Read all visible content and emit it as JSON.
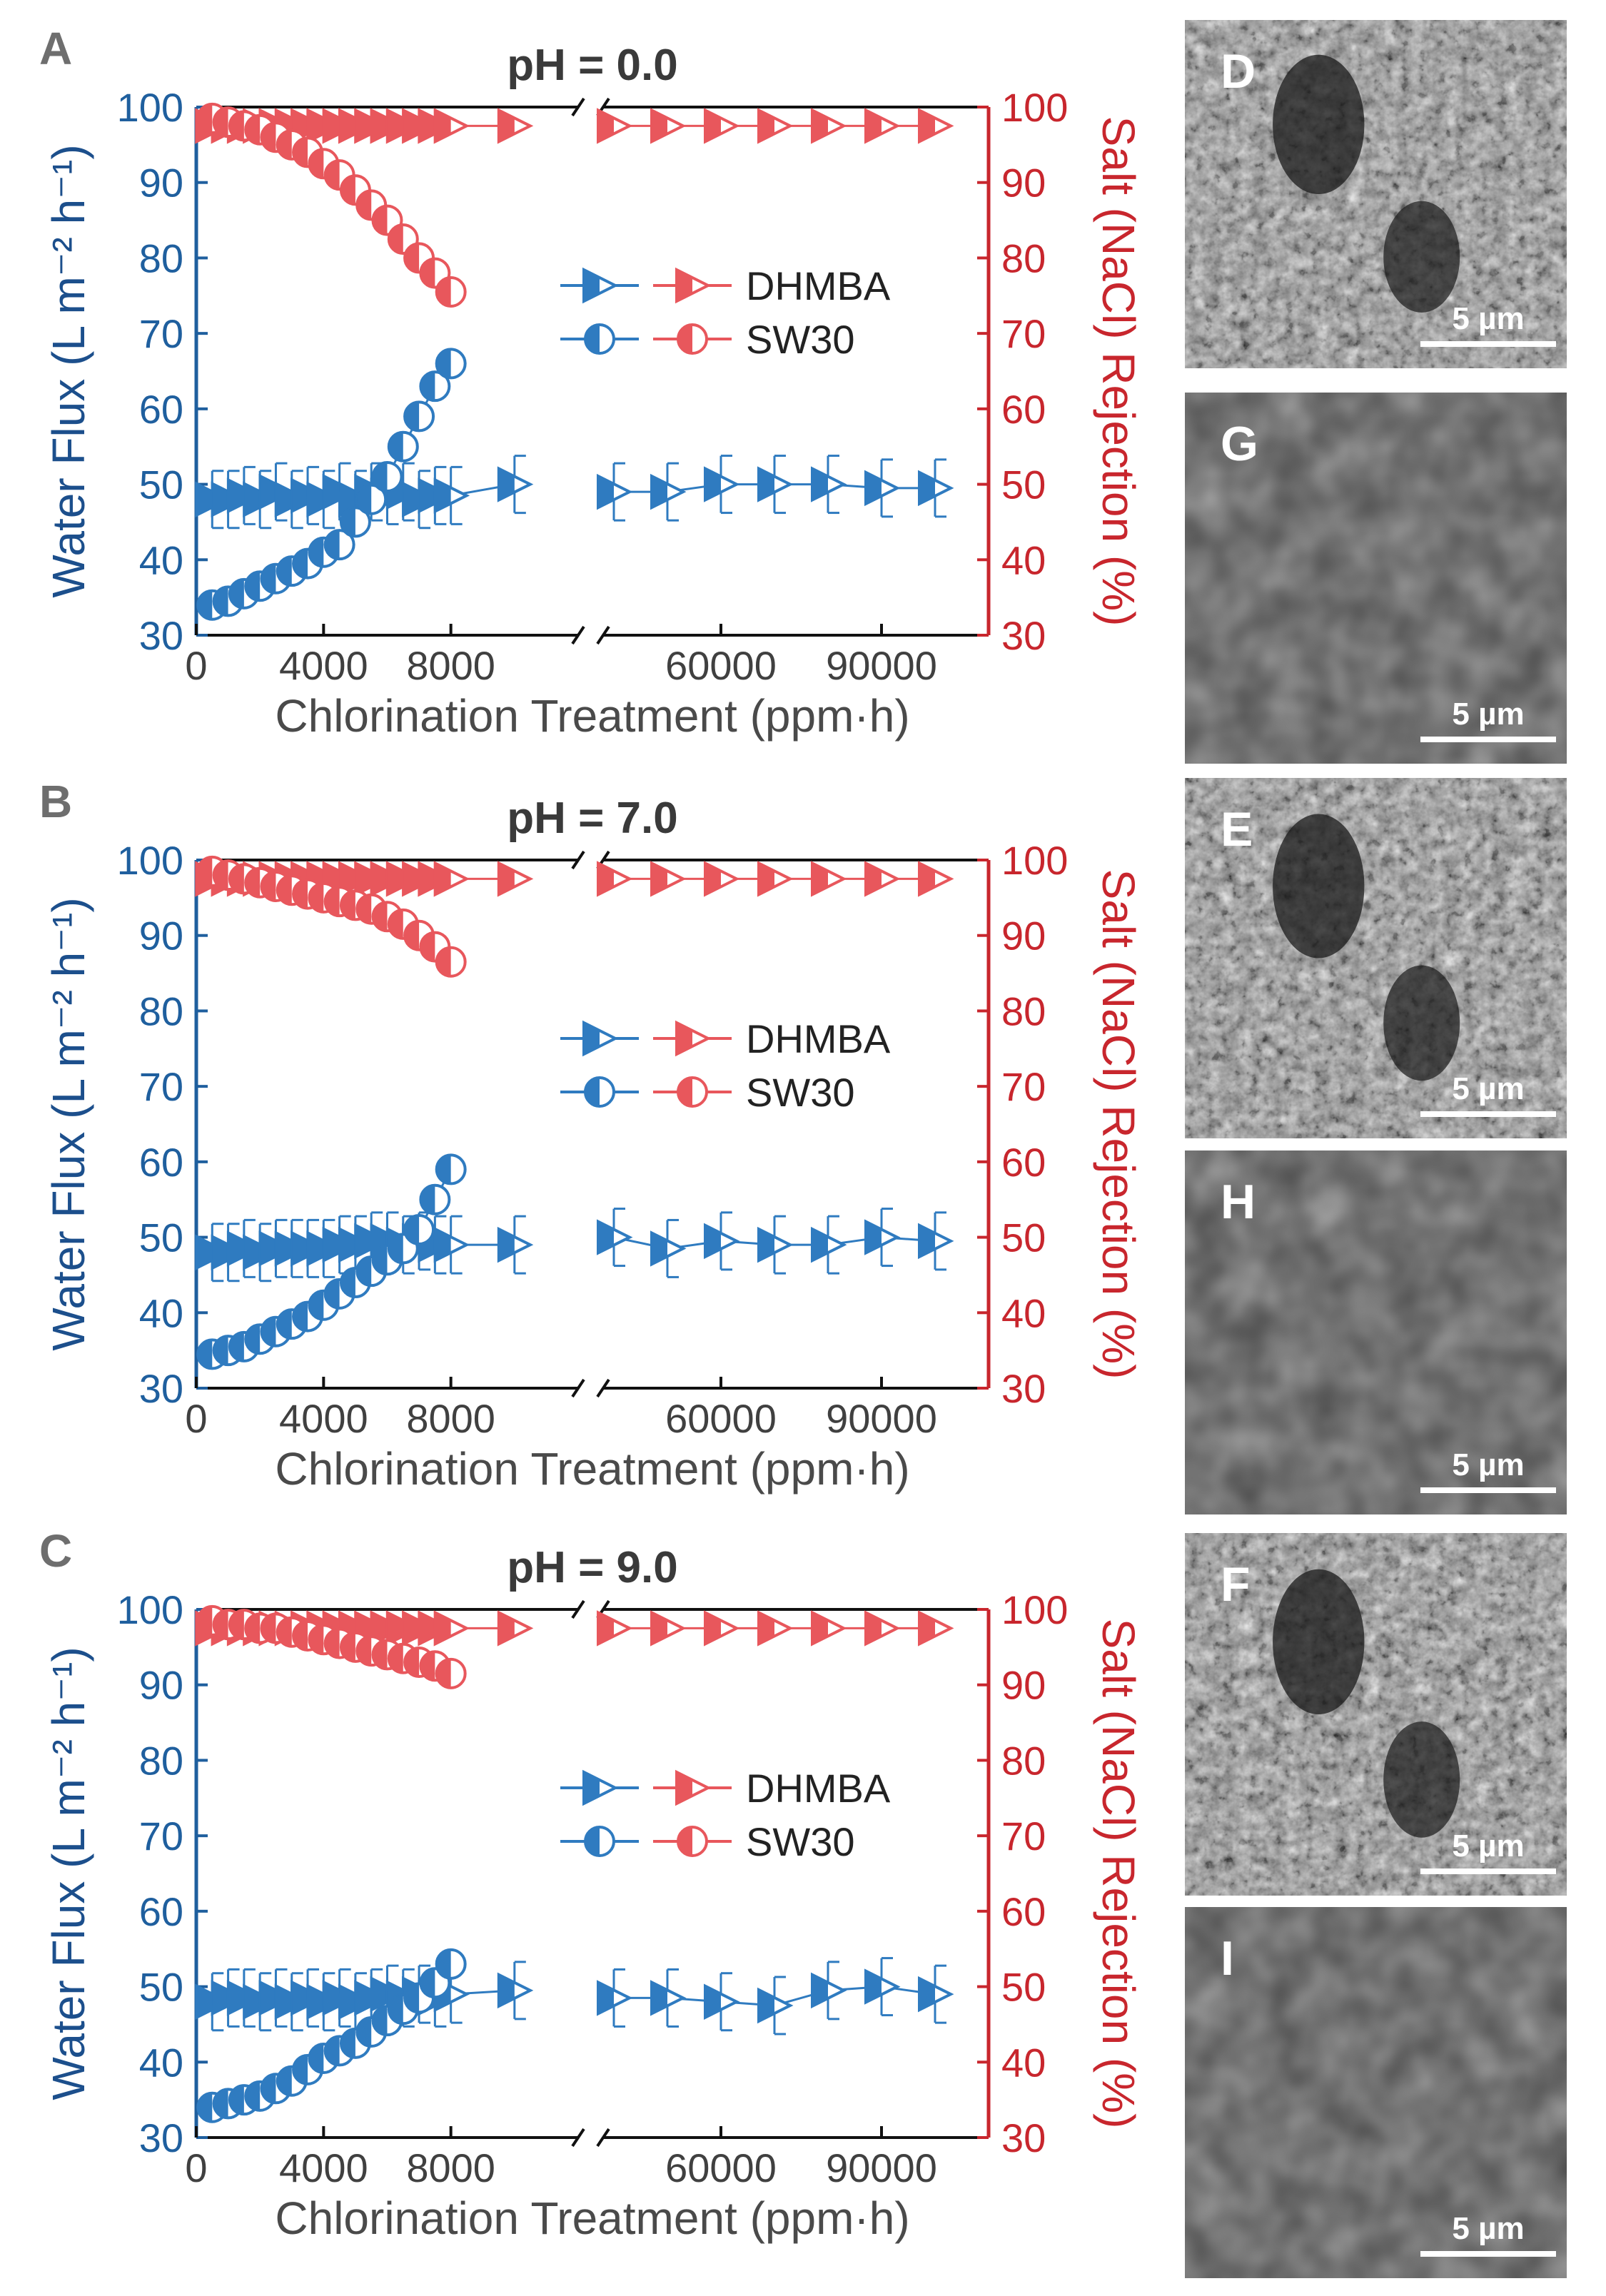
{
  "colors": {
    "flux": "#2f7bc0",
    "flux_axis": "#1f5f9e",
    "flux_label": "#1c4f8c",
    "rejection": "#e8575c",
    "rejection_axis": "#c8262d",
    "text": "#404040"
  },
  "chart_data": [
    {
      "type": "scatter",
      "panel_letter": "A",
      "title": "pH = 0.0",
      "xlabel": "Chlorination Treatment (ppm·h)",
      "ylabel_left": "Water Flux (L m⁻² h⁻¹)",
      "ylabel_right": "Salt (NaCl) Rejection (%)",
      "x_ticks": [
        0,
        4000,
        8000,
        60000,
        90000
      ],
      "x_break": true,
      "ylim_left": [
        30,
        100
      ],
      "ylim_right": [
        30,
        100
      ],
      "y_ticks": [
        30,
        40,
        50,
        60,
        70,
        80,
        90,
        100
      ],
      "legend": [
        "DHMBA",
        "SW30"
      ],
      "legend_position": "right-middle",
      "series": [
        {
          "name": "DHMBA",
          "quantity": "water flux",
          "axis": "left",
          "marker": "half-filled right triangle",
          "x": [
            500,
            1000,
            1500,
            2000,
            2500,
            3000,
            3500,
            4000,
            4500,
            5000,
            5500,
            6000,
            6500,
            7000,
            7500,
            8000,
            10000,
            40000,
            50000,
            60000,
            70000,
            80000,
            90000,
            100000
          ],
          "y": [
            48,
            48,
            48.5,
            48,
            49,
            48,
            48.5,
            48,
            49,
            48,
            49,
            48.5,
            49,
            48,
            48.5,
            48.5,
            50,
            49,
            49,
            50,
            50,
            50,
            49.5,
            49.5
          ]
        },
        {
          "name": "SW30",
          "quantity": "water flux",
          "axis": "left",
          "marker": "half-filled circle",
          "x": [
            500,
            1000,
            1500,
            2000,
            2500,
            3000,
            3500,
            4000,
            4500,
            5000,
            5500,
            6000,
            6500,
            7000,
            7500,
            8000
          ],
          "y": [
            34,
            34.5,
            35.5,
            36.5,
            37.5,
            38.5,
            39.5,
            41,
            42,
            45,
            48,
            51,
            55,
            59,
            63,
            66
          ]
        },
        {
          "name": "DHMBA",
          "quantity": "salt rejection",
          "axis": "right",
          "marker": "half-filled right triangle",
          "x": [
            500,
            1000,
            1500,
            2000,
            2500,
            3000,
            3500,
            4000,
            4500,
            5000,
            5500,
            6000,
            6500,
            7000,
            7500,
            8000,
            10000,
            40000,
            50000,
            60000,
            70000,
            80000,
            90000,
            100000
          ],
          "y": [
            97.5,
            97.5,
            97.5,
            97.5,
            97.5,
            97.5,
            97.5,
            97.5,
            97.5,
            97.5,
            97.5,
            97.5,
            97.5,
            97.5,
            97.5,
            97.5,
            97.5,
            97.5,
            97.5,
            97.5,
            97.5,
            97.5,
            97.5,
            97.5
          ]
        },
        {
          "name": "SW30",
          "quantity": "salt rejection",
          "axis": "right",
          "marker": "half-filled circle",
          "x": [
            500,
            1000,
            1500,
            2000,
            2500,
            3000,
            3500,
            4000,
            4500,
            5000,
            5500,
            6000,
            6500,
            7000,
            7500,
            8000
          ],
          "y": [
            98.5,
            98,
            97.5,
            97,
            96,
            95,
            94,
            92.5,
            91,
            89,
            87,
            85,
            82.5,
            80,
            78,
            75.5
          ]
        }
      ]
    },
    {
      "type": "scatter",
      "panel_letter": "B",
      "title": "pH = 7.0",
      "xlabel": "Chlorination Treatment (ppm·h)",
      "ylabel_left": "Water Flux (L m⁻² h⁻¹)",
      "ylabel_right": "Salt (NaCl) Rejection (%)",
      "x_ticks": [
        0,
        4000,
        8000,
        60000,
        90000
      ],
      "x_break": true,
      "ylim_left": [
        30,
        100
      ],
      "ylim_right": [
        30,
        100
      ],
      "y_ticks": [
        30,
        40,
        50,
        60,
        70,
        80,
        90,
        100
      ],
      "legend": [
        "DHMBA",
        "SW30"
      ],
      "legend_position": "right-middle",
      "series": [
        {
          "name": "DHMBA",
          "quantity": "water flux",
          "axis": "left",
          "marker": "half-filled right triangle",
          "x": [
            500,
            1000,
            1500,
            2000,
            2500,
            3000,
            3500,
            4000,
            4500,
            5000,
            5500,
            6000,
            6500,
            7000,
            7500,
            8000,
            10000,
            40000,
            50000,
            60000,
            70000,
            80000,
            90000,
            100000
          ],
          "y": [
            48,
            48,
            48.5,
            48,
            48.5,
            48.5,
            48.5,
            48.5,
            49,
            49,
            49.5,
            49.5,
            49,
            49.5,
            49,
            49,
            49,
            50,
            48.5,
            49.5,
            49,
            49,
            50,
            49.5
          ]
        },
        {
          "name": "SW30",
          "quantity": "water flux",
          "axis": "left",
          "marker": "half-filled circle",
          "x": [
            500,
            1000,
            1500,
            2000,
            2500,
            3000,
            3500,
            4000,
            4500,
            5000,
            5500,
            6000,
            6500,
            7000,
            7500,
            8000
          ],
          "y": [
            34.5,
            35,
            35.5,
            36.5,
            37.5,
            38.5,
            39.5,
            41,
            42.5,
            44,
            45.5,
            47,
            48.5,
            51,
            55,
            59
          ]
        },
        {
          "name": "DHMBA",
          "quantity": "salt rejection",
          "axis": "right",
          "marker": "half-filled right triangle",
          "x": [
            500,
            1000,
            1500,
            2000,
            2500,
            3000,
            3500,
            4000,
            4500,
            5000,
            5500,
            6000,
            6500,
            7000,
            7500,
            8000,
            10000,
            40000,
            50000,
            60000,
            70000,
            80000,
            90000,
            100000
          ],
          "y": [
            97.5,
            97.5,
            97.5,
            97.5,
            97.5,
            97.5,
            97.5,
            97.5,
            97.5,
            97.5,
            97.5,
            97.5,
            97.5,
            97.5,
            97.5,
            97.5,
            97.5,
            97.5,
            97.5,
            97.5,
            97.5,
            97.5,
            97.5,
            97.5
          ]
        },
        {
          "name": "SW30",
          "quantity": "salt rejection",
          "axis": "right",
          "marker": "half-filled circle",
          "x": [
            500,
            1000,
            1500,
            2000,
            2500,
            3000,
            3500,
            4000,
            4500,
            5000,
            5500,
            6000,
            6500,
            7000,
            7500,
            8000
          ],
          "y": [
            98.5,
            98,
            97.5,
            97,
            96.5,
            96,
            95.5,
            95,
            94.5,
            94,
            93.5,
            92.5,
            91.5,
            90,
            88.5,
            86.5
          ]
        }
      ]
    },
    {
      "type": "scatter",
      "panel_letter": "C",
      "title": "pH = 9.0",
      "xlabel": "Chlorination Treatment (ppm·h)",
      "ylabel_left": "Water Flux (L m⁻² h⁻¹)",
      "ylabel_right": "Salt (NaCl) Rejection (%)",
      "x_ticks": [
        0,
        4000,
        8000,
        60000,
        90000
      ],
      "x_break": true,
      "ylim_left": [
        30,
        100
      ],
      "ylim_right": [
        30,
        100
      ],
      "y_ticks": [
        30,
        40,
        50,
        60,
        70,
        80,
        90,
        100
      ],
      "legend": [
        "DHMBA",
        "SW30"
      ],
      "legend_position": "right-middle",
      "series": [
        {
          "name": "DHMBA",
          "quantity": "water flux",
          "axis": "left",
          "marker": "half-filled right triangle",
          "x": [
            500,
            1000,
            1500,
            2000,
            2500,
            3000,
            3500,
            4000,
            4500,
            5000,
            5500,
            6000,
            6500,
            7000,
            7500,
            8000,
            10000,
            40000,
            50000,
            60000,
            70000,
            80000,
            90000,
            100000
          ],
          "y": [
            48,
            48.5,
            48.5,
            48,
            48.5,
            48,
            48.5,
            48,
            48.5,
            48,
            48.5,
            49,
            48.5,
            49,
            48.5,
            49,
            49.5,
            48.5,
            48.5,
            48,
            47.5,
            49.5,
            50,
            49
          ]
        },
        {
          "name": "SW30",
          "quantity": "water flux",
          "axis": "left",
          "marker": "half-filled circle",
          "x": [
            500,
            1000,
            1500,
            2000,
            2500,
            3000,
            3500,
            4000,
            4500,
            5000,
            5500,
            6000,
            6500,
            7000,
            7500,
            8000
          ],
          "y": [
            34,
            34.5,
            35,
            35.5,
            36.5,
            37.5,
            39,
            40.5,
            41.5,
            42.5,
            44,
            45.5,
            47,
            48.5,
            50.5,
            53
          ]
        },
        {
          "name": "DHMBA",
          "quantity": "salt rejection",
          "axis": "right",
          "marker": "half-filled right triangle",
          "x": [
            500,
            1000,
            1500,
            2000,
            2500,
            3000,
            3500,
            4000,
            4500,
            5000,
            5500,
            6000,
            6500,
            7000,
            7500,
            8000,
            10000,
            40000,
            50000,
            60000,
            70000,
            80000,
            90000,
            100000
          ],
          "y": [
            97.5,
            97.5,
            97.5,
            97.5,
            97.5,
            97.5,
            97.5,
            97.5,
            97.5,
            97.5,
            97.5,
            97.5,
            97.5,
            97.5,
            97.5,
            97.5,
            97.5,
            97.5,
            97.5,
            97.5,
            97.5,
            97.5,
            97.5,
            97.5
          ]
        },
        {
          "name": "SW30",
          "quantity": "salt rejection",
          "axis": "right",
          "marker": "half-filled circle",
          "x": [
            500,
            1000,
            1500,
            2000,
            2500,
            3000,
            3500,
            4000,
            4500,
            5000,
            5500,
            6000,
            6500,
            7000,
            7500,
            8000
          ],
          "y": [
            98.5,
            98,
            98,
            97.5,
            97.5,
            97,
            96.5,
            96,
            95.5,
            95,
            94.5,
            94,
            93.5,
            93,
            92.5,
            91.5
          ]
        }
      ]
    }
  ],
  "sem_images": [
    {
      "letter": "D",
      "scale_bar": "5 µm",
      "texture": "rough"
    },
    {
      "letter": "G",
      "scale_bar": "5 µm",
      "texture": "smooth"
    },
    {
      "letter": "E",
      "scale_bar": "5 µm",
      "texture": "rough"
    },
    {
      "letter": "H",
      "scale_bar": "5 µm",
      "texture": "smooth"
    },
    {
      "letter": "F",
      "scale_bar": "5 µm",
      "texture": "rough"
    },
    {
      "letter": "I",
      "scale_bar": "5 µm",
      "texture": "smooth"
    }
  ]
}
